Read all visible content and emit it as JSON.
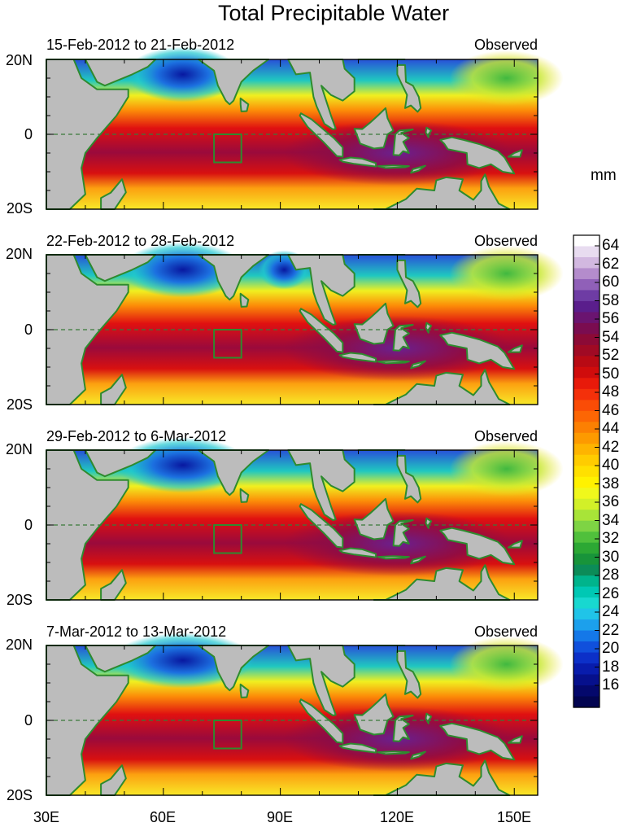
{
  "title": "Total Precipitable Water",
  "unit": "mm",
  "panels": [
    {
      "date_range": "15-Feb-2012 to 21-Feb-2012",
      "status": "Observed"
    },
    {
      "date_range": "22-Feb-2012 to 28-Feb-2012",
      "status": "Observed"
    },
    {
      "date_range": "29-Feb-2012 to 6-Mar-2012",
      "status": "Observed"
    },
    {
      "date_range": "7-Mar-2012 to 13-Mar-2012",
      "status": "Observed"
    }
  ],
  "lat_labels": [
    "20N",
    "0",
    "20S"
  ],
  "lon_labels": [
    "30E",
    "60E",
    "90E",
    "120E",
    "150E"
  ],
  "colorbar": {
    "labels": [
      "64",
      "62",
      "60",
      "58",
      "56",
      "54",
      "52",
      "50",
      "48",
      "46",
      "44",
      "42",
      "40",
      "38",
      "36",
      "34",
      "32",
      "30",
      "28",
      "26",
      "24",
      "22",
      "20",
      "18",
      "16"
    ],
    "colors": [
      "#ffffff",
      "#e8dcf0",
      "#d2b8e0",
      "#b48ccc",
      "#9060b8",
      "#6e3ca4",
      "#5a1e8c",
      "#6a1470",
      "#7a0c50",
      "#8c0a36",
      "#a00a24",
      "#b80a14",
      "#d00c0c",
      "#e81a0a",
      "#f4300a",
      "#fa4c06",
      "#fc6604",
      "#fc8002",
      "#fd9a00",
      "#feb400",
      "#ffcc00",
      "#ffe000",
      "#fff200",
      "#f0f81c",
      "#d2f028",
      "#a8e438",
      "#7ed444",
      "#50c03c",
      "#2ca834",
      "#18943a",
      "#0c8c58",
      "#00b48c",
      "#00c8b4",
      "#18d8d0",
      "#20c4e8",
      "#1ca0ec",
      "#1478e8",
      "#1050dc",
      "#0c30c8",
      "#081cac",
      "#06108c",
      "#04086c",
      "#020450"
    ]
  },
  "colors": {
    "land": "#bcbcbc",
    "coast": "#2e8b2e",
    "box": "#2e8b2e"
  }
}
